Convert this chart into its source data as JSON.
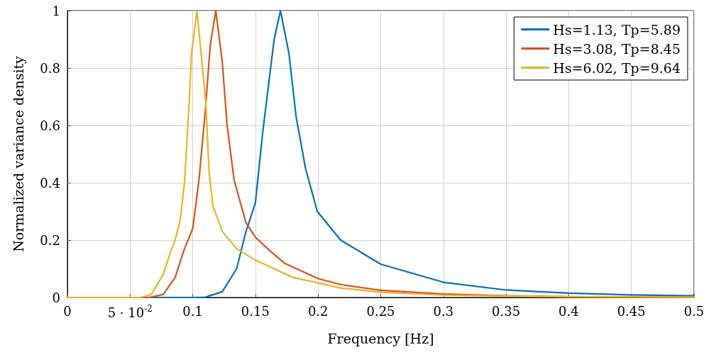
{
  "chart_data": {
    "type": "line",
    "xlabel": "Frequency [Hz]",
    "ylabel": "Normalized variance density",
    "xlim": [
      0,
      0.5
    ],
    "ylim": [
      0,
      1
    ],
    "xticks": [
      0,
      {
        "value": 0.05,
        "label": "5 · 10$^{-2}$"
      },
      0.1,
      0.15,
      0.2,
      0.25,
      0.3,
      0.35,
      0.4,
      0.45,
      0.5
    ],
    "yticks": [
      0,
      0.2,
      0.4,
      0.6,
      0.8,
      1
    ],
    "grid": true,
    "legend": "top right",
    "marker": "none",
    "line_style": "solid",
    "series": [
      {
        "name": "Hs=1.13, Tp=5.89",
        "color": "#0072bd",
        "x": [
          0,
          0.1,
          0.11,
          0.1236,
          0.135,
          0.1425,
          0.15,
          0.1557,
          0.1613,
          0.165,
          0.17,
          0.1768,
          0.1825,
          0.19,
          0.1994,
          0.218,
          0.25,
          0.3,
          0.35,
          0.4,
          0.45,
          0.5
        ],
        "values": [
          0,
          0,
          0.001,
          0.02,
          0.1,
          0.23,
          0.33,
          0.57,
          0.77,
          0.9,
          1,
          0.85,
          0.63,
          0.45,
          0.3,
          0.2,
          0.116,
          0.053,
          0.026,
          0.015,
          0.009,
          0.006
        ]
      },
      {
        "name": "Hs=3.08, Tp=8.45",
        "color": "#d95319",
        "x": [
          0,
          0.065,
          0.0764,
          0.086,
          0.093,
          0.1,
          0.105,
          0.11,
          0.114,
          0.1184,
          0.1236,
          0.1274,
          0.133,
          0.1425,
          0.15,
          0.1613,
          0.173,
          0.2,
          0.218,
          0.25,
          0.3,
          0.35,
          0.4,
          0.5
        ],
        "values": [
          0,
          0,
          0.01,
          0.07,
          0.165,
          0.24,
          0.41,
          0.65,
          0.88,
          1,
          0.82,
          0.6,
          0.41,
          0.26,
          0.21,
          0.164,
          0.12,
          0.066,
          0.045,
          0.025,
          0.012,
          0.006,
          0.003,
          0.001
        ]
      },
      {
        "name": "Hs=6.02, Tp=9.64",
        "color": "#edb120",
        "x": [
          0,
          0.058,
          0.0668,
          0.0764,
          0.082,
          0.086,
          0.09,
          0.0934,
          0.0972,
          0.099,
          0.1034,
          0.1104,
          0.113,
          0.116,
          0.1236,
          0.135,
          0.15,
          0.18,
          0.218,
          0.25,
          0.3,
          0.4,
          0.5
        ],
        "values": [
          0,
          0,
          0.01,
          0.08,
          0.155,
          0.2,
          0.27,
          0.4,
          0.68,
          0.85,
          1,
          0.68,
          0.44,
          0.32,
          0.23,
          0.17,
          0.13,
          0.07,
          0.033,
          0.018,
          0.008,
          0.002,
          0.001
        ]
      }
    ]
  }
}
